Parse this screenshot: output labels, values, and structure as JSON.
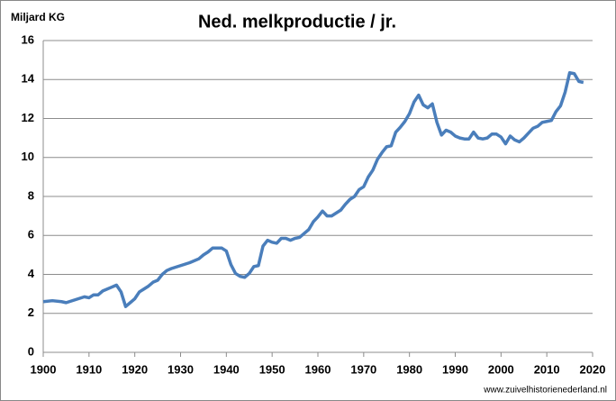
{
  "chart_data": {
    "type": "line",
    "title": "Ned. melkproductie / jr.",
    "y_label": "Miljard KG",
    "source": "www.zuivelhistorienederland.nl",
    "x": [
      1900,
      1902,
      1904,
      1905,
      1907,
      1909,
      1910,
      1911,
      1912,
      1913,
      1915,
      1916,
      1917,
      1918,
      1919,
      1920,
      1921,
      1922,
      1923,
      1924,
      1925,
      1926,
      1927,
      1928,
      1930,
      1932,
      1934,
      1935,
      1936,
      1937,
      1938,
      1939,
      1940,
      1941,
      1942,
      1943,
      1944,
      1945,
      1946,
      1947,
      1948,
      1949,
      1950,
      1951,
      1952,
      1953,
      1954,
      1955,
      1956,
      1957,
      1958,
      1959,
      1960,
      1961,
      1962,
      1963,
      1964,
      1965,
      1966,
      1967,
      1968,
      1969,
      1970,
      1971,
      1972,
      1973,
      1974,
      1975,
      1976,
      1977,
      1978,
      1979,
      1980,
      1981,
      1982,
      1983,
      1984,
      1985,
      1986,
      1987,
      1988,
      1989,
      1990,
      1991,
      1992,
      1993,
      1994,
      1995,
      1996,
      1997,
      1998,
      1999,
      2000,
      2001,
      2002,
      2003,
      2004,
      2005,
      2006,
      2007,
      2008,
      2009,
      2010,
      2011,
      2012,
      2013,
      2014,
      2015,
      2016,
      2017,
      2018
    ],
    "values": [
      2.6,
      2.65,
      2.6,
      2.55,
      2.7,
      2.85,
      2.8,
      2.95,
      2.95,
      3.15,
      3.35,
      3.45,
      3.1,
      2.35,
      2.55,
      2.75,
      3.1,
      3.25,
      3.4,
      3.6,
      3.7,
      4.0,
      4.2,
      4.3,
      4.45,
      4.6,
      4.8,
      5.0,
      5.15,
      5.35,
      5.35,
      5.35,
      5.2,
      4.5,
      4.05,
      3.9,
      3.85,
      4.05,
      4.4,
      4.45,
      5.45,
      5.75,
      5.65,
      5.6,
      5.85,
      5.85,
      5.75,
      5.85,
      5.9,
      6.1,
      6.3,
      6.7,
      6.95,
      7.25,
      7.0,
      7.0,
      7.15,
      7.3,
      7.6,
      7.85,
      8.0,
      8.35,
      8.5,
      9.0,
      9.35,
      9.9,
      10.25,
      10.55,
      10.6,
      11.3,
      11.55,
      11.85,
      12.25,
      12.85,
      13.2,
      12.7,
      12.55,
      12.75,
      11.8,
      11.15,
      11.4,
      11.3,
      11.1,
      11.0,
      10.95,
      10.95,
      11.3,
      11.0,
      10.95,
      11.0,
      11.2,
      11.2,
      11.05,
      10.7,
      11.1,
      10.9,
      10.8,
      11.0,
      11.25,
      11.5,
      11.6,
      11.8,
      11.85,
      11.9,
      12.35,
      12.65,
      13.35,
      14.35,
      14.3,
      13.9,
      13.85
    ],
    "color": "#4a7ebb",
    "xlim": [
      1900,
      2020
    ],
    "xticks": [
      1900,
      1910,
      1920,
      1930,
      1940,
      1950,
      1960,
      1970,
      1980,
      1990,
      2000,
      2010,
      2020
    ],
    "ylim": [
      0,
      16
    ],
    "yticks": [
      0,
      2,
      4,
      6,
      8,
      10,
      12,
      14,
      16
    ],
    "grid": true
  }
}
